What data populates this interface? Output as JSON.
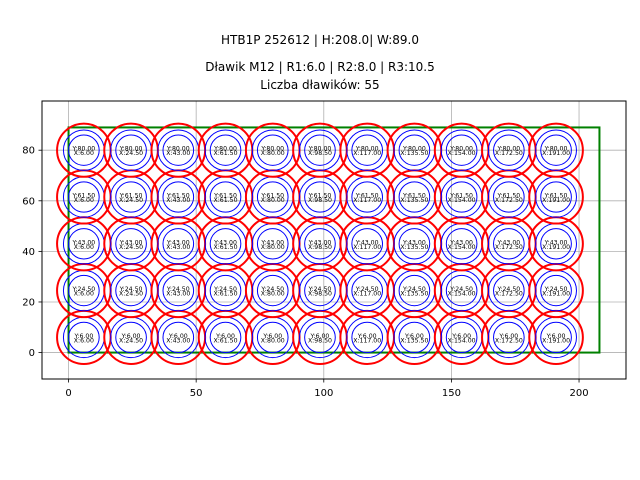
{
  "header": {
    "title_line1": "HTB1P 252612 | H:208.0| W:89.0",
    "title_line2": "Dławik M12 | R1:6.0 | R2:8.0 | R3:10.5",
    "title_line3": "Liczba dławików: 55"
  },
  "colors": {
    "outer_circle": "#ff0000",
    "inner_circles": "#0000ff",
    "rectangle": "#008000",
    "grid": "#b0b0b0"
  },
  "chart_data": {
    "type": "scatter",
    "title": "HTB1P 252612 | H:208.0| W:89.0 / Dławik M12 | R1:6.0 | R2:8.0 | R3:10.5 / Liczba dławików: 55",
    "xlabel": "",
    "ylabel": "",
    "xlim": [
      -10.4,
      218.4
    ],
    "ylim": [
      -10.45,
      99.45
    ],
    "grid": true,
    "x_ticks": [
      0,
      50,
      100,
      150,
      200
    ],
    "y_ticks": [
      0,
      20,
      40,
      60,
      80
    ],
    "rectangle": {
      "x": 0,
      "y": 0,
      "width": 208.0,
      "height": 89.0,
      "color": "#008000"
    },
    "radii": {
      "R1": 6.0,
      "R2": 8.0,
      "R3": 10.5
    },
    "x_positions": [
      6.0,
      24.5,
      43.0,
      61.5,
      80.0,
      98.5,
      117.0,
      135.5,
      154.0,
      172.5,
      191.0
    ],
    "y_positions": [
      6.0,
      24.5,
      43.0,
      61.5,
      80.0
    ],
    "count": 55,
    "label_format": "Y:{y} / X:{x}"
  }
}
